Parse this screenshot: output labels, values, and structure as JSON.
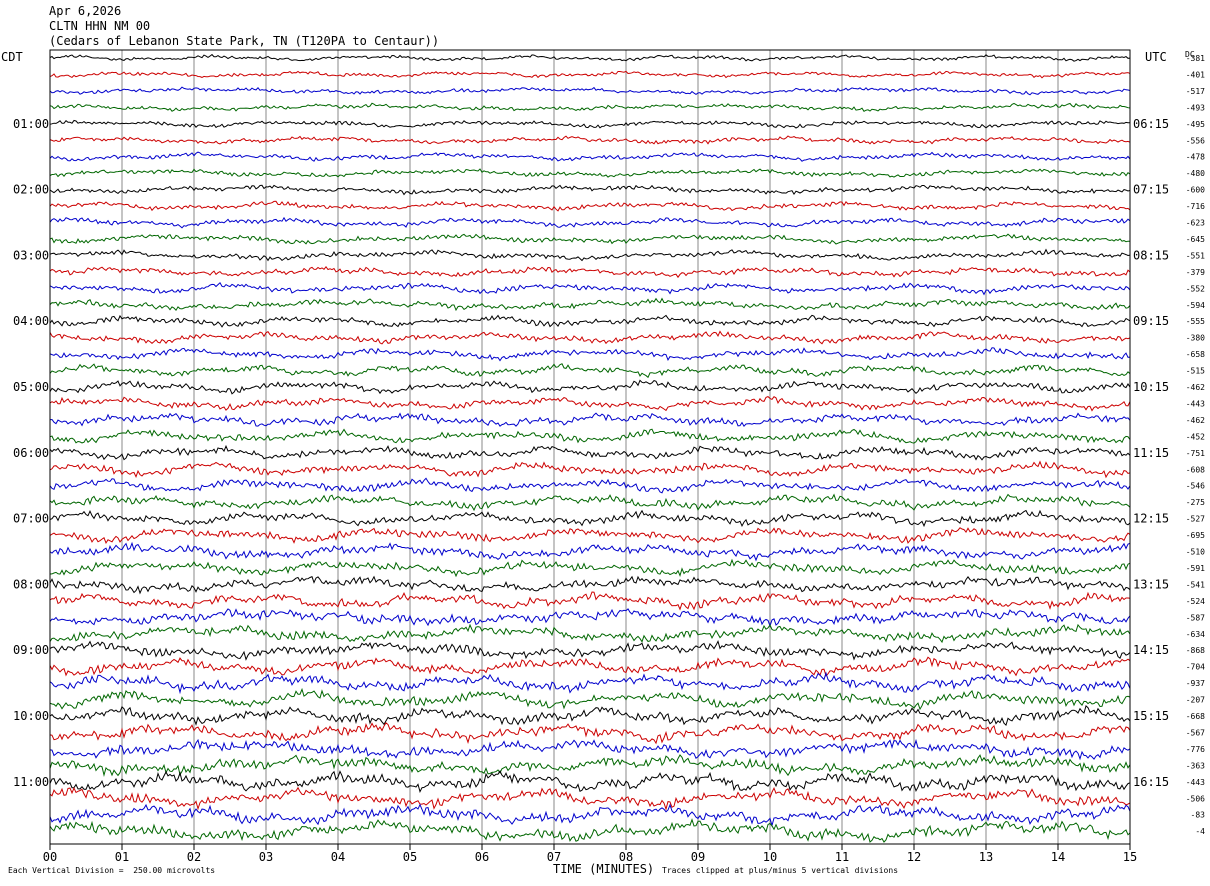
{
  "header": {
    "date": "Apr 6,2026",
    "station": "CLTN HHN NM 00",
    "location": "(Cedars of Lebanon State Park, TN (T120PA to Centaur))"
  },
  "left_tz": "CDT",
  "right_tz": "UTC",
  "dc_label": "DC",
  "footer": {
    "scale_note": "Each Vertical Division =  250.00 microvolts",
    "xlabel": "TIME (MINUTES)",
    "clip_note": "Traces clipped at plus/minus 5 vertical divisions"
  },
  "chart_data": {
    "type": "line",
    "xlabel": "TIME (MINUTES)",
    "xlim": [
      0,
      15
    ],
    "x_ticks": [
      "00",
      "01",
      "02",
      "03",
      "04",
      "05",
      "06",
      "07",
      "08",
      "09",
      "10",
      "11",
      "12",
      "13",
      "14",
      "15"
    ],
    "grid": "vertical lines at each minute",
    "trace_colors": [
      "#000000",
      "#cc0000",
      "#0000cc",
      "#006600"
    ],
    "left_hour_labels": [
      "01:00",
      "02:00",
      "03:00",
      "04:00",
      "05:00",
      "06:00",
      "07:00",
      "08:00",
      "09:00",
      "10:00",
      "11:00"
    ],
    "right_hour_labels": [
      "06:15",
      "07:15",
      "08:15",
      "09:15",
      "10:15",
      "11:15",
      "12:15",
      "13:15",
      "14:15",
      "15:15",
      "16:15"
    ],
    "dc_offsets": [
      -381,
      -401,
      -517,
      -493,
      -495,
      -556,
      -478,
      -480,
      -600,
      -716,
      -623,
      -645,
      -551,
      -379,
      -552,
      -594,
      -555,
      -380,
      -658,
      -515,
      -462,
      -443,
      -462,
      -452,
      -751,
      -608,
      -546,
      -275,
      -527,
      -695,
      -510,
      -591,
      -541,
      -524,
      -587,
      -634,
      -868,
      -704,
      -937,
      -207,
      -668,
      -567,
      -776,
      -363,
      -443,
      -506,
      -83,
      -4
    ]
  }
}
